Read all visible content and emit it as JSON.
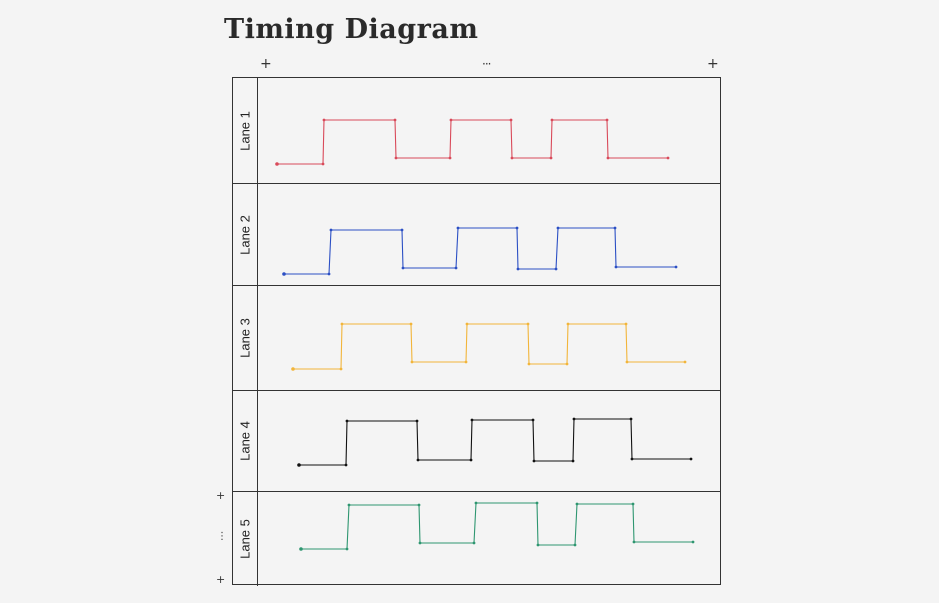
{
  "diagram": {
    "title": "Timing Diagram",
    "lanes": [
      {
        "label": "Lane 1",
        "color": "#d94a5a"
      },
      {
        "label": "Lane 2",
        "color": "#2b4fc4"
      },
      {
        "label": "Lane 3",
        "color": "#f2b53a"
      },
      {
        "label": "Lane 4",
        "color": "#111111"
      },
      {
        "label": "Lane 5",
        "color": "#2e9670"
      }
    ]
  },
  "controls": {
    "add_lane_symbol": "+",
    "more_symbol": "···",
    "more_vertical_symbol": "⋮"
  }
}
